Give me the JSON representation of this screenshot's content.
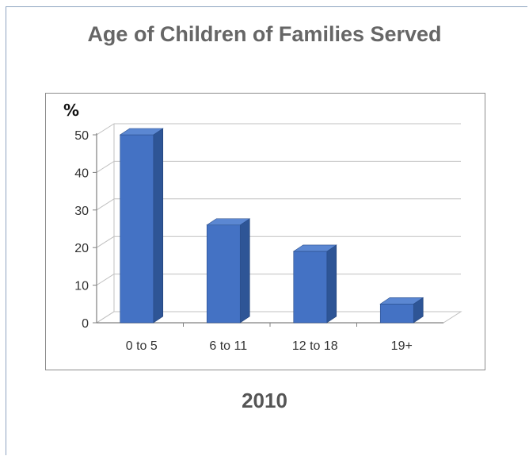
{
  "page": {
    "title": "Age of Children of Families Served",
    "subtitle": "2010"
  },
  "chart_data": {
    "type": "bar",
    "unit_label": "%",
    "categories": [
      "0 to 5",
      "6 to 11",
      "12 to 18",
      "19+"
    ],
    "values": [
      50,
      26,
      19,
      5
    ],
    "yticks": [
      0,
      10,
      20,
      30,
      40,
      50
    ],
    "ylim": [
      0,
      50
    ],
    "grid": true,
    "three_d": true,
    "colors": {
      "bar_front": "#4472C4",
      "bar_side": "#2E5596",
      "bar_top": "#5B87D2",
      "grid": "#c0c0c0",
      "axis": "#808080"
    }
  }
}
